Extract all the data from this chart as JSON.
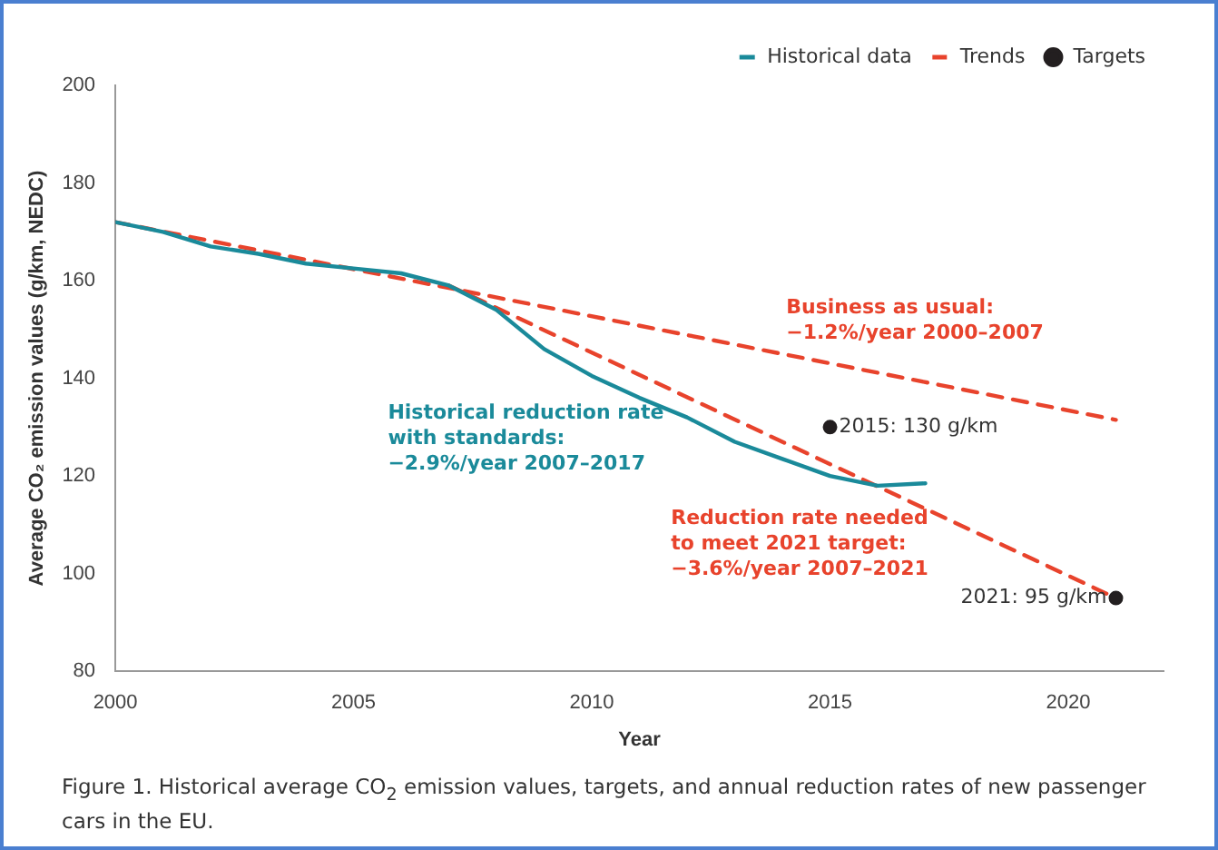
{
  "chart_data": {
    "type": "line",
    "ylabel": "Average CO₂ emission values (g/km, NEDC)",
    "xlabel": "Year",
    "xlim": [
      2000,
      2022
    ],
    "xticks": [
      2000,
      2005,
      2010,
      2015,
      2020
    ],
    "ylim": [
      80,
      200
    ],
    "yticks": [
      80,
      100,
      120,
      140,
      160,
      180,
      200
    ],
    "grid": false,
    "legend": "top right",
    "series": [
      {
        "name": "Historical data",
        "color": "#1a8a9a",
        "line_style": "solid",
        "marker": "none",
        "x": [
          2000,
          2001,
          2002,
          2003,
          2004,
          2005,
          2006,
          2007,
          2008,
          2009,
          2010,
          2011,
          2012,
          2013,
          2014,
          2015,
          2016,
          2017
        ],
        "values": [
          172,
          170,
          167,
          165.5,
          163.5,
          162.5,
          161.5,
          159,
          154,
          146,
          140.5,
          136,
          132,
          127,
          123.5,
          120,
          118,
          118.5
        ]
      },
      {
        "name": "Trends",
        "color": "#e8432c",
        "line_style": "dashed",
        "marker": "none",
        "x": [
          2000,
          2021
        ],
        "values": [
          172,
          131.5
        ]
      },
      {
        "color": "#e8432c",
        "line_style": "dashed",
        "marker": "none",
        "x": [
          2007,
          2021
        ],
        "values": [
          159,
          95
        ]
      },
      {
        "name": "Targets",
        "type": "scatter",
        "color": "#231f20",
        "marker": "circle",
        "x": [
          2015,
          2021
        ],
        "values": [
          130,
          95
        ]
      }
    ],
    "annotations": [
      "Business as usual:\n−1.2%/year 2000–2007",
      "Historical reduction rate\nwith standards:\n−2.9%/year 2007–2017",
      "Reduction rate needed\nto meet 2021 target:\n−3.6%/year 2007–2021",
      {
        "text": "2015: 130 g/km",
        "x": 2015,
        "y": 130
      },
      {
        "text": "2021: 95 g/km",
        "x": 2021,
        "y": 95
      },
      "Figure 1. Historical average CO$_{2}$ emission values, targets, and annual reduction rates of new passenger cars in the EU."
    ]
  }
}
